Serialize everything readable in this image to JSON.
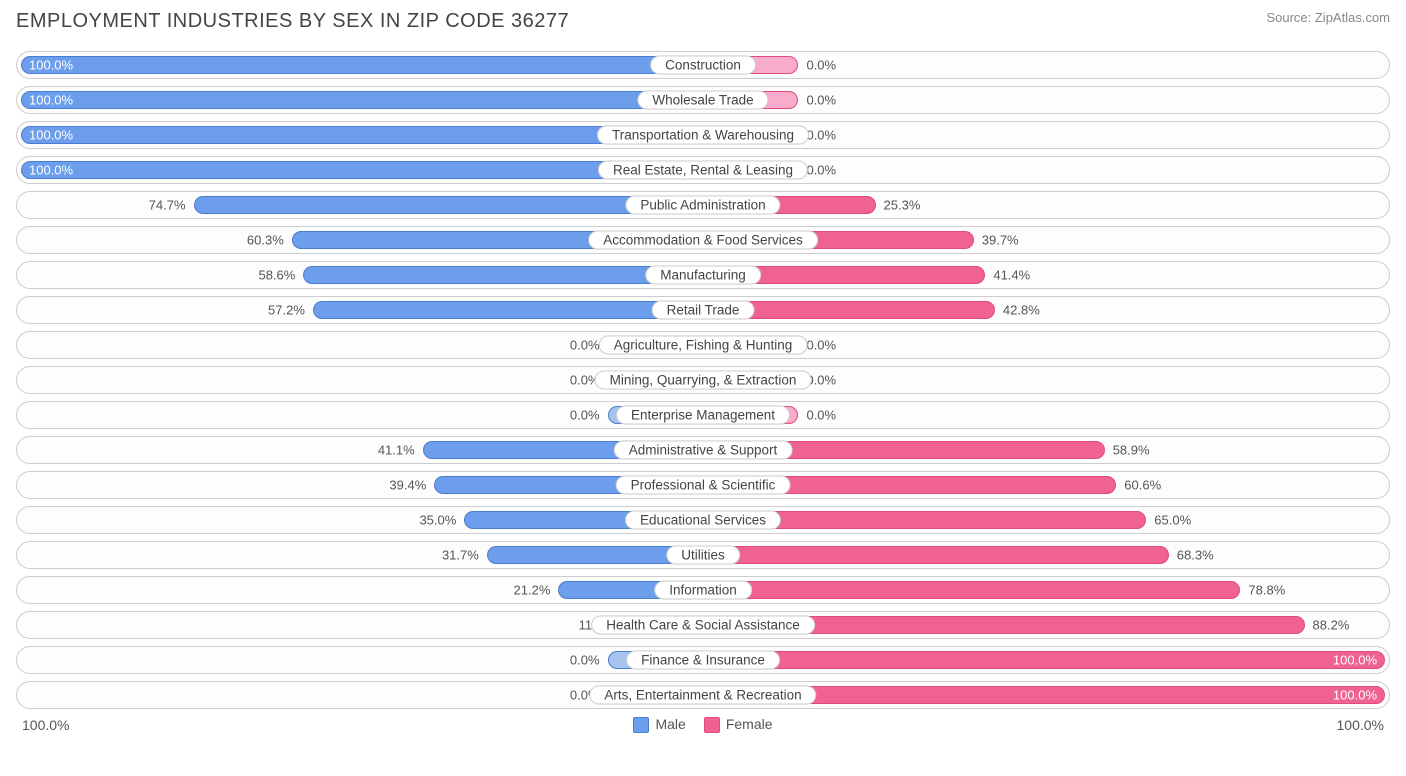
{
  "title": "EMPLOYMENT INDUSTRIES BY SEX IN ZIP CODE 36277",
  "source": "Source: ZipAtlas.com",
  "colors": {
    "male_fill": "#6d9eeb",
    "male_stroke": "#4a7dd1",
    "female_fill": "#f06292",
    "female_stroke": "#e04a7d",
    "zero_male_fill": "#a7c3ef",
    "zero_female_fill": "#f7accc",
    "row_border": "#cccccc",
    "background": "#ffffff",
    "text": "#555555",
    "title_text": "#444444"
  },
  "chart": {
    "type": "diverging-bar",
    "axis_left": "100.0%",
    "axis_right": "100.0%",
    "legend": [
      {
        "label": "Male",
        "color": "#6d9eeb"
      },
      {
        "label": "Female",
        "color": "#f06292"
      }
    ],
    "zero_stub_pct": 14,
    "rows": [
      {
        "category": "Construction",
        "male": 100.0,
        "female": 0.0,
        "zero": false
      },
      {
        "category": "Wholesale Trade",
        "male": 100.0,
        "female": 0.0,
        "zero": false
      },
      {
        "category": "Transportation & Warehousing",
        "male": 100.0,
        "female": 0.0,
        "zero": false
      },
      {
        "category": "Real Estate, Rental & Leasing",
        "male": 100.0,
        "female": 0.0,
        "zero": false
      },
      {
        "category": "Public Administration",
        "male": 74.7,
        "female": 25.3,
        "zero": false
      },
      {
        "category": "Accommodation & Food Services",
        "male": 60.3,
        "female": 39.7,
        "zero": false
      },
      {
        "category": "Manufacturing",
        "male": 58.6,
        "female": 41.4,
        "zero": false
      },
      {
        "category": "Retail Trade",
        "male": 57.2,
        "female": 42.8,
        "zero": false
      },
      {
        "category": "Agriculture, Fishing & Hunting",
        "male": 0.0,
        "female": 0.0,
        "zero": true
      },
      {
        "category": "Mining, Quarrying, & Extraction",
        "male": 0.0,
        "female": 0.0,
        "zero": true
      },
      {
        "category": "Enterprise Management",
        "male": 0.0,
        "female": 0.0,
        "zero": true
      },
      {
        "category": "Administrative & Support",
        "male": 41.1,
        "female": 58.9,
        "zero": false
      },
      {
        "category": "Professional & Scientific",
        "male": 39.4,
        "female": 60.6,
        "zero": false
      },
      {
        "category": "Educational Services",
        "male": 35.0,
        "female": 65.0,
        "zero": false
      },
      {
        "category": "Utilities",
        "male": 31.7,
        "female": 68.3,
        "zero": false
      },
      {
        "category": "Information",
        "male": 21.2,
        "female": 78.8,
        "zero": false
      },
      {
        "category": "Health Care & Social Assistance",
        "male": 11.8,
        "female": 88.2,
        "zero": false
      },
      {
        "category": "Finance & Insurance",
        "male": 0.0,
        "female": 100.0,
        "zero": false
      },
      {
        "category": "Arts, Entertainment & Recreation",
        "male": 0.0,
        "female": 100.0,
        "zero": false
      }
    ]
  }
}
